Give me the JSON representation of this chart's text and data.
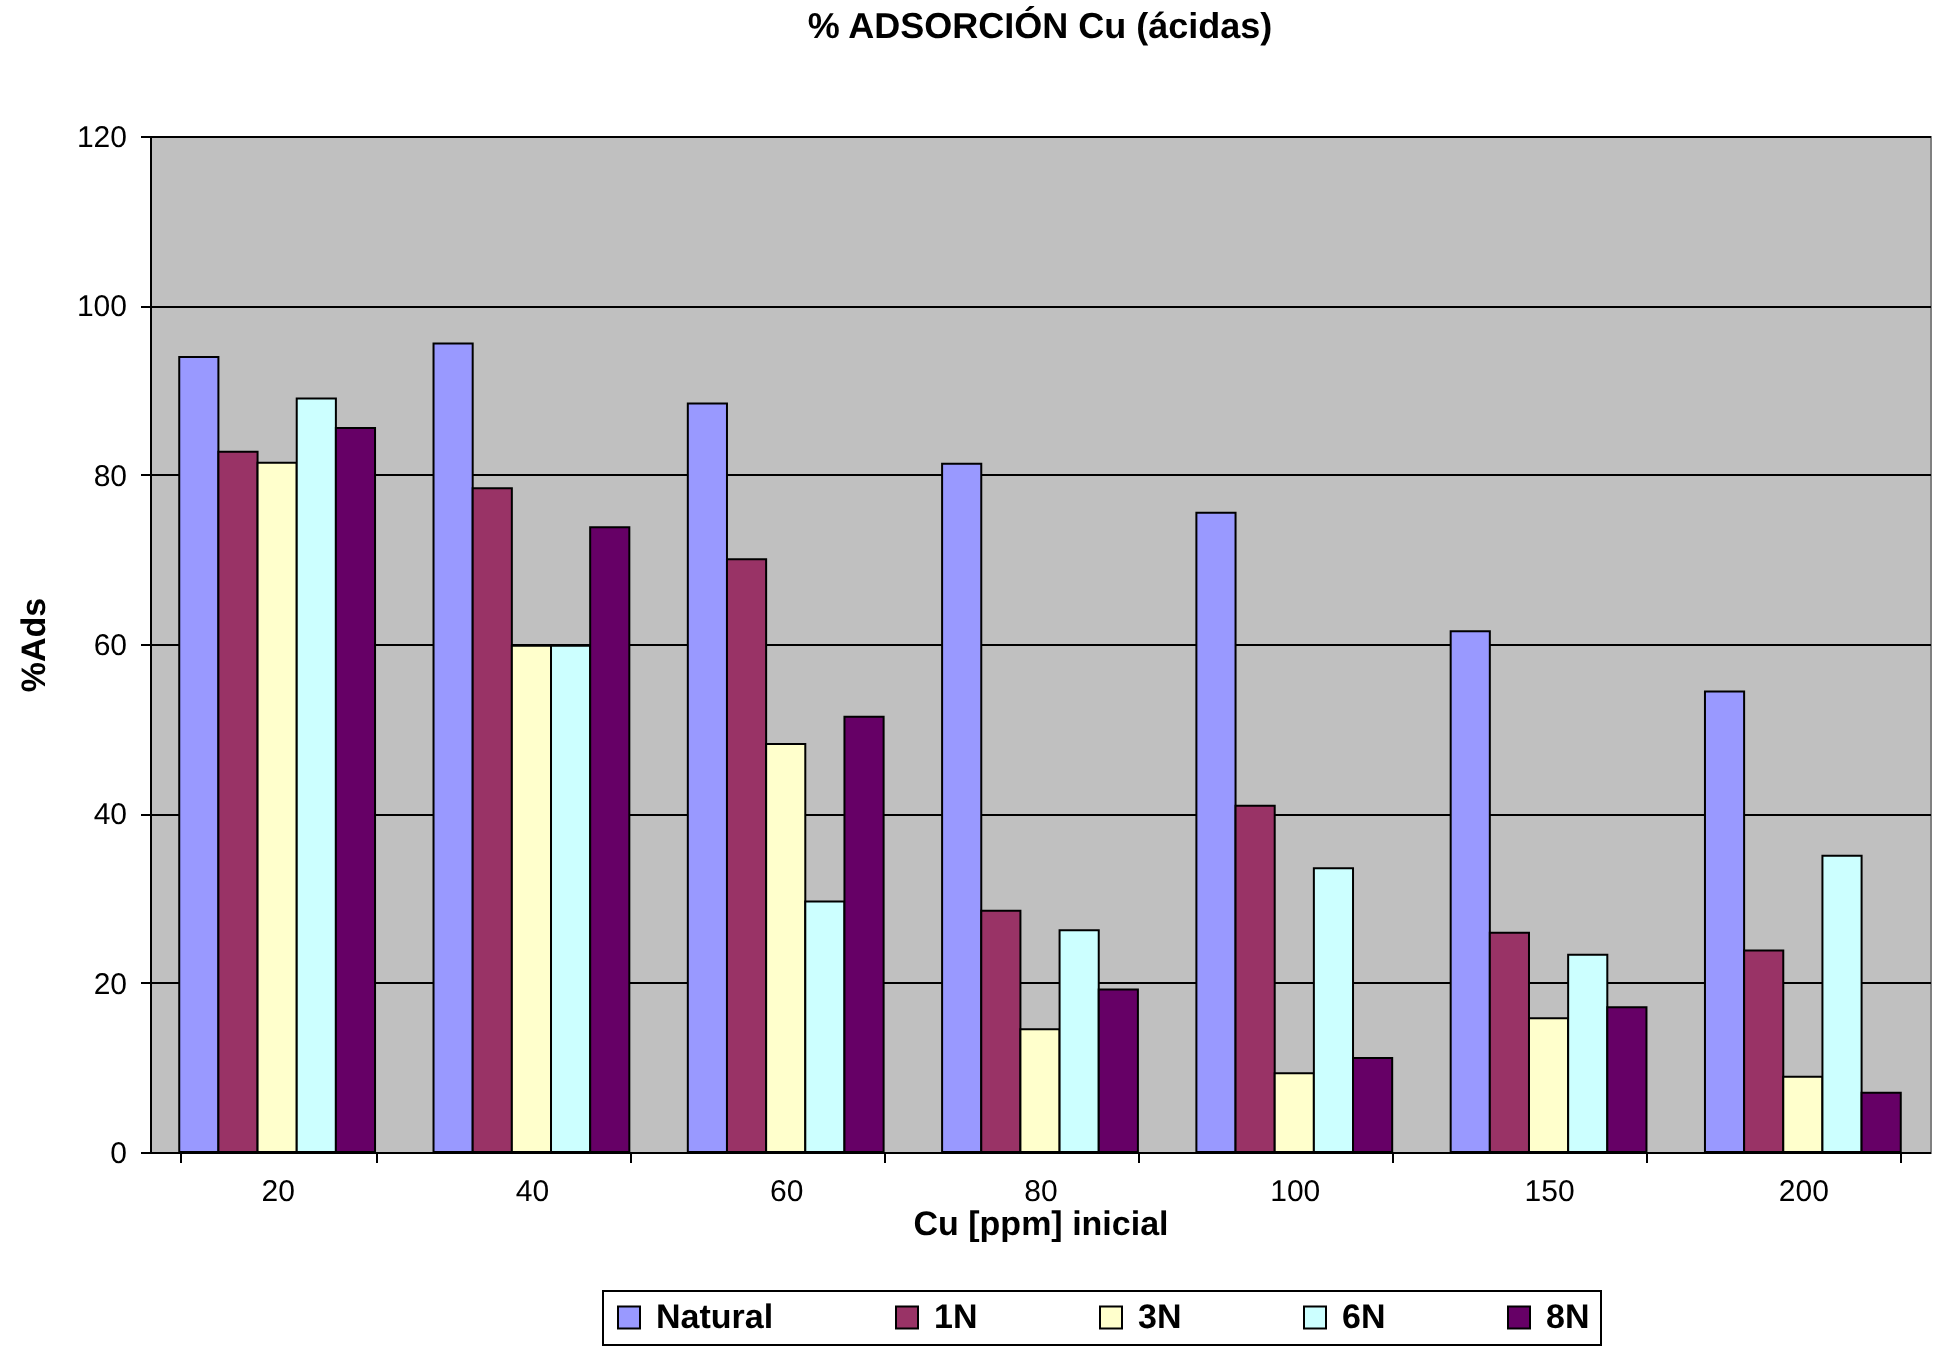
{
  "chart_data": {
    "type": "bar",
    "title": "% ADSORCIÓN Cu (ácidas)",
    "xlabel": "Cu [ppm] inicial",
    "ylabel": "%Ads",
    "categories": [
      "20",
      "40",
      "60",
      "80",
      "100",
      "150",
      "200"
    ],
    "series": [
      {
        "name": "Natural",
        "color": "#9999ff",
        "values": [
          93.9,
          95.5,
          88.4,
          81.3,
          75.5,
          61.5,
          54.4
        ]
      },
      {
        "name": "1N",
        "color": "#993366",
        "values": [
          82.7,
          78.4,
          70.0,
          28.5,
          40.9,
          25.9,
          23.8
        ]
      },
      {
        "name": "3N",
        "color": "#ffffcc",
        "values": [
          81.4,
          59.8,
          48.2,
          14.5,
          9.3,
          15.8,
          8.9
        ]
      },
      {
        "name": "6N",
        "color": "#ccffff",
        "values": [
          89.0,
          59.8,
          29.6,
          26.2,
          33.5,
          23.3,
          35.0
        ]
      },
      {
        "name": "8N",
        "color": "#660066",
        "values": [
          85.5,
          73.8,
          51.4,
          19.2,
          11.1,
          17.1,
          7.0
        ]
      }
    ],
    "ylim": [
      0,
      120
    ],
    "yticks": [
      0,
      20,
      40,
      60,
      80,
      100,
      120
    ],
    "grid": "y",
    "legend": "bottom"
  }
}
